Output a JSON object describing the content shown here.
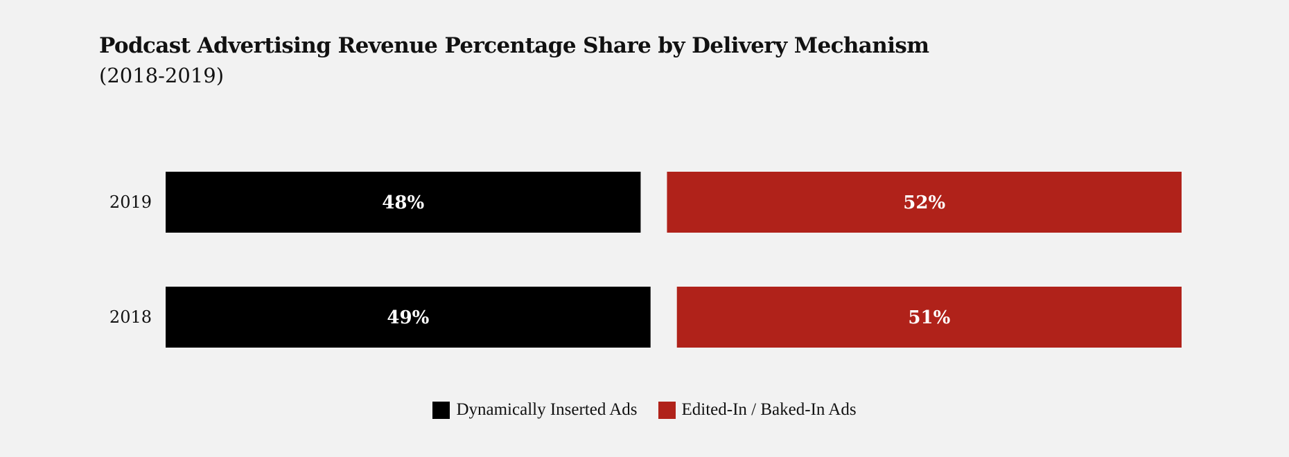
{
  "chart_data": {
    "type": "bar",
    "orientation": "horizontal",
    "stacked": true,
    "title": "Podcast Advertising Revenue Percentage Share by Delivery Mechanism",
    "subtitle": "(2018-2019)",
    "categories": [
      "2019",
      "2018"
    ],
    "series": [
      {
        "name": "Dynamically Inserted Ads",
        "color": "#000000",
        "values": [
          48,
          49
        ],
        "labels": [
          "48%",
          "49%"
        ]
      },
      {
        "name": "Edited-In / Baked-In Ads",
        "color": "#b0221a",
        "values": [
          52,
          51
        ],
        "labels": [
          "52%",
          "51%"
        ]
      }
    ],
    "xlim": [
      0,
      100
    ],
    "grid": false,
    "legend_position": "bottom"
  }
}
